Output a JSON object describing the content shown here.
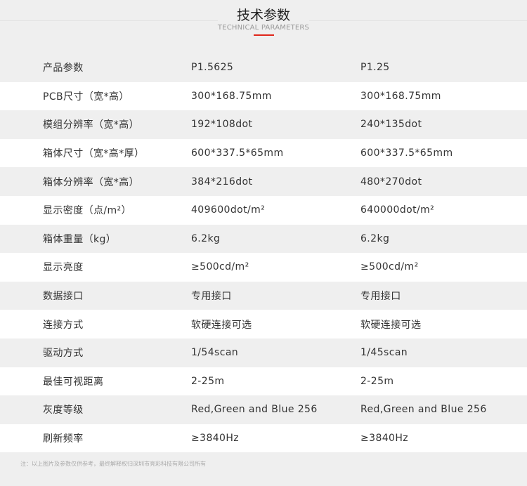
{
  "header": {
    "title": "技术参数",
    "subtitle": "TECHNICAL PARAMETERS",
    "accent_color": "#e0261a"
  },
  "table": {
    "rows": [
      [
        "产品参数",
        "P1.5625",
        "P1.25"
      ],
      [
        "PCB尺寸（宽*高）",
        "300*168.75mm",
        "300*168.75mm"
      ],
      [
        "模组分辨率（宽*高）",
        "192*108dot",
        "240*135dot"
      ],
      [
        "箱体尺寸（宽*高*厚）",
        "600*337.5*65mm",
        "600*337.5*65mm"
      ],
      [
        "箱体分辨率（宽*高）",
        "384*216dot",
        "480*270dot"
      ],
      [
        "显示密度（点/m²）",
        "409600dot/m²",
        "640000dot/m²"
      ],
      [
        "箱体重量（kg）",
        "6.2kg",
        "6.2kg"
      ],
      [
        "显示亮度",
        "≥500cd/m²",
        "≥500cd/m²"
      ],
      [
        "数据接口",
        "专用接口",
        "专用接口"
      ],
      [
        "连接方式",
        "软硬连接可选",
        "软硬连接可选"
      ],
      [
        "驱动方式",
        "1/54scan",
        "1/45scan"
      ],
      [
        "最佳可视距离",
        "2-25m",
        "2-25m"
      ],
      [
        "灰度等级",
        "Red,Green and Blue 256",
        "Red,Green and Blue 256"
      ],
      [
        "刷新频率",
        "≥3840Hz",
        "≥3840Hz"
      ]
    ]
  },
  "footer": {
    "note": "注：以上图片及参数仅供参考，最终解释权归深圳市亮彩科技有限公司所有"
  }
}
